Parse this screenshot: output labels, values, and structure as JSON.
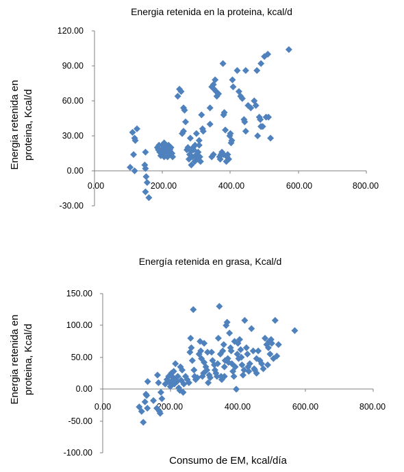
{
  "chart_data": [
    {
      "type": "scatter",
      "title": "Energia retenida  en la proteina, kcal/d",
      "xlabel": "",
      "ylabel": [
        "Energia retenida en",
        "proteina, Kcal/d"
      ],
      "xlim": [
        0,
        800
      ],
      "ylim": [
        -30,
        120
      ],
      "xticks": [
        "0.00",
        "200.00",
        "400.00",
        "600.00",
        "800.00"
      ],
      "yticks": [
        "-30.00",
        "0.00",
        "30.00",
        "60.00",
        "90.00",
        "120.00"
      ],
      "marker_color": "#4f81bd",
      "marker": "diamond",
      "series": [
        {
          "points": [
            [
              105,
              3
            ],
            [
              112,
              33
            ],
            [
              118,
              28
            ],
            [
              120,
              26
            ],
            [
              125,
              36
            ],
            [
              115,
              14
            ],
            [
              118,
              0
            ],
            [
              148,
              5
            ],
            [
              150,
              2
            ],
            [
              150,
              16
            ],
            [
              152,
              -5
            ],
            [
              155,
              -10
            ],
            [
              150,
              -18
            ],
            [
              160,
              -23
            ],
            [
              185,
              20
            ],
            [
              188,
              18
            ],
            [
              190,
              22
            ],
            [
              192,
              16
            ],
            [
              195,
              13
            ],
            [
              198,
              18
            ],
            [
              200,
              22
            ],
            [
              203,
              15
            ],
            [
              205,
              12
            ],
            [
              208,
              20
            ],
            [
              210,
              18
            ],
            [
              212,
              16
            ],
            [
              215,
              12
            ],
            [
              218,
              22
            ],
            [
              220,
              14
            ],
            [
              222,
              18
            ],
            [
              225,
              20
            ],
            [
              228,
              15
            ],
            [
              230,
              12
            ],
            [
              205,
              24
            ],
            [
              245,
              64
            ],
            [
              250,
              70
            ],
            [
              255,
              68
            ],
            [
              262,
              54
            ],
            [
              265,
              52
            ],
            [
              258,
              32
            ],
            [
              262,
              34
            ],
            [
              268,
              42
            ],
            [
              272,
              18
            ],
            [
              275,
              20
            ],
            [
              278,
              10
            ],
            [
              280,
              14
            ],
            [
              282,
              28
            ],
            [
              285,
              5
            ],
            [
              288,
              12
            ],
            [
              290,
              20
            ],
            [
              292,
              18
            ],
            [
              295,
              8
            ],
            [
              298,
              12
            ],
            [
              300,
              14
            ],
            [
              302,
              10
            ],
            [
              305,
              16
            ],
            [
              308,
              22
            ],
            [
              310,
              12
            ],
            [
              312,
              8
            ],
            [
              315,
              48
            ],
            [
              318,
              36
            ],
            [
              320,
              34
            ],
            [
              300,
              32
            ],
            [
              308,
              26
            ],
            [
              296,
              22
            ],
            [
              285,
              17
            ],
            [
              340,
              54
            ],
            [
              345,
              72
            ],
            [
              350,
              74
            ],
            [
              352,
              70
            ],
            [
              355,
              78
            ],
            [
              358,
              68
            ],
            [
              360,
              64
            ],
            [
              365,
              66
            ],
            [
              368,
              12
            ],
            [
              370,
              10
            ],
            [
              372,
              14
            ],
            [
              375,
              16
            ],
            [
              378,
              92
            ],
            [
              380,
              48
            ],
            [
              382,
              50
            ],
            [
              385,
              35
            ],
            [
              388,
              8
            ],
            [
              390,
              12
            ],
            [
              392,
              14
            ],
            [
              395,
              10
            ],
            [
              398,
              30
            ],
            [
              400,
              32
            ],
            [
              402,
              24
            ],
            [
              404,
              26
            ],
            [
              406,
              78
            ],
            [
              408,
              72
            ],
            [
              380,
              14
            ],
            [
              340,
              40
            ],
            [
              350,
              14
            ],
            [
              345,
              12
            ],
            [
              420,
              86
            ],
            [
              425,
              68
            ],
            [
              430,
              64
            ],
            [
              435,
              62
            ],
            [
              440,
              44
            ],
            [
              442,
              42
            ],
            [
              445,
              86
            ],
            [
              452,
              56
            ],
            [
              460,
              54
            ],
            [
              470,
              60
            ],
            [
              478,
              86
            ],
            [
              480,
              30
            ],
            [
              485,
              46
            ],
            [
              488,
              44
            ],
            [
              490,
              38
            ],
            [
              495,
              38
            ],
            [
              500,
              98
            ],
            [
              505,
              46
            ],
            [
              510,
              100
            ],
            [
              512,
              46
            ],
            [
              518,
              28
            ],
            [
              490,
              92
            ],
            [
              572,
              104
            ],
            [
              490,
              38
            ],
            [
              445,
              34
            ],
            [
              475,
              56
            ]
          ]
        }
      ]
    },
    {
      "type": "scatter",
      "title": "Energía retenida  en grasa, Kcal/d",
      "xlabel": "Consumo de EM, kcal/día",
      "ylabel": [
        "Energia retenida en",
        "proteina, Kcal/d"
      ],
      "xlim": [
        0,
        800
      ],
      "ylim": [
        -100,
        150
      ],
      "xticks": [
        "0.00",
        "200.00",
        "400.00",
        "600.00",
        "800.00"
      ],
      "yticks": [
        "-100.00",
        "-50.00",
        "0.00",
        "50.00",
        "100.00",
        "150.00"
      ],
      "marker_color": "#4f81bd",
      "marker": "diamond",
      "series": [
        {
          "points": [
            [
              108,
              -28
            ],
            [
              115,
              -35
            ],
            [
              120,
              -52
            ],
            [
              125,
              -20
            ],
            [
              128,
              -8
            ],
            [
              130,
              -10
            ],
            [
              132,
              -30
            ],
            [
              133,
              12
            ],
            [
              150,
              -18
            ],
            [
              160,
              -30
            ],
            [
              162,
              22
            ],
            [
              165,
              10
            ],
            [
              168,
              -35
            ],
            [
              170,
              -38
            ],
            [
              172,
              -5
            ],
            [
              175,
              -15
            ],
            [
              185,
              8
            ],
            [
              190,
              15
            ],
            [
              195,
              20
            ],
            [
              198,
              10
            ],
            [
              200,
              4
            ],
            [
              203,
              25
            ],
            [
              205,
              20
            ],
            [
              208,
              15
            ],
            [
              210,
              28
            ],
            [
              212,
              8
            ],
            [
              215,
              40
            ],
            [
              218,
              18
            ],
            [
              220,
              12
            ],
            [
              222,
              20
            ],
            [
              225,
              2
            ],
            [
              228,
              -2
            ],
            [
              230,
              35
            ],
            [
              232,
              14
            ],
            [
              235,
              30
            ],
            [
              238,
              -5
            ],
            [
              240,
              8
            ],
            [
              245,
              20
            ],
            [
              250,
              15
            ],
            [
              255,
              10
            ],
            [
              258,
              58
            ],
            [
              260,
              80
            ],
            [
              262,
              65
            ],
            [
              265,
              45
            ],
            [
              268,
              125
            ],
            [
              270,
              30
            ],
            [
              272,
              20
            ],
            [
              275,
              15
            ],
            [
              280,
              18
            ],
            [
              285,
              55
            ],
            [
              288,
              75
            ],
            [
              290,
              60
            ],
            [
              292,
              48
            ],
            [
              295,
              20
            ],
            [
              298,
              25
            ],
            [
              300,
              42
            ],
            [
              305,
              35
            ],
            [
              308,
              30
            ],
            [
              310,
              58
            ],
            [
              312,
              10
            ],
            [
              315,
              22
            ],
            [
              318,
              18
            ],
            [
              322,
              58
            ],
            [
              325,
              45
            ],
            [
              330,
              38
            ],
            [
              332,
              30
            ],
            [
              335,
              25
            ],
            [
              338,
              20
            ],
            [
              340,
              40
            ],
            [
              342,
              80
            ],
            [
              345,
              130
            ],
            [
              348,
              55
            ],
            [
              350,
              20
            ],
            [
              352,
              15
            ],
            [
              355,
              60
            ],
            [
              358,
              70
            ],
            [
              360,
              35
            ],
            [
              362,
              45
            ],
            [
              365,
              100
            ],
            [
              368,
              105
            ],
            [
              370,
              48
            ],
            [
              372,
              42
            ],
            [
              375,
              88
            ],
            [
              378,
              65
            ],
            [
              380,
              60
            ],
            [
              382,
              40
            ],
            [
              385,
              28
            ],
            [
              388,
              20
            ],
            [
              390,
              75
            ],
            [
              392,
              35
            ],
            [
              395,
              0
            ],
            [
              398,
              55
            ],
            [
              400,
              72
            ],
            [
              402,
              48
            ],
            [
              405,
              78
            ],
            [
              408,
              62
            ],
            [
              410,
              50
            ],
            [
              412,
              38
            ],
            [
              415,
              22
            ],
            [
              418,
              30
            ],
            [
              420,
              108
            ],
            [
              425,
              65
            ],
            [
              428,
              55
            ],
            [
              430,
              35
            ],
            [
              432,
              28
            ],
            [
              435,
              40
            ],
            [
              440,
              95
            ],
            [
              445,
              60
            ],
            [
              448,
              32
            ],
            [
              450,
              30
            ],
            [
              455,
              25
            ],
            [
              460,
              60
            ],
            [
              465,
              45
            ],
            [
              470,
              40
            ],
            [
              475,
              32
            ],
            [
              480,
              80
            ],
            [
              485,
              70
            ],
            [
              490,
              65
            ],
            [
              492,
              75
            ],
            [
              495,
              55
            ],
            [
              498,
              78
            ],
            [
              500,
              72
            ],
            [
              505,
              48
            ],
            [
              510,
              108
            ],
            [
              515,
              52
            ],
            [
              520,
              70
            ],
            [
              568,
              92
            ],
            [
              488,
              38
            ],
            [
              455,
              48
            ],
            [
              360,
              20
            ],
            [
              300,
              72
            ]
          ]
        }
      ]
    }
  ]
}
